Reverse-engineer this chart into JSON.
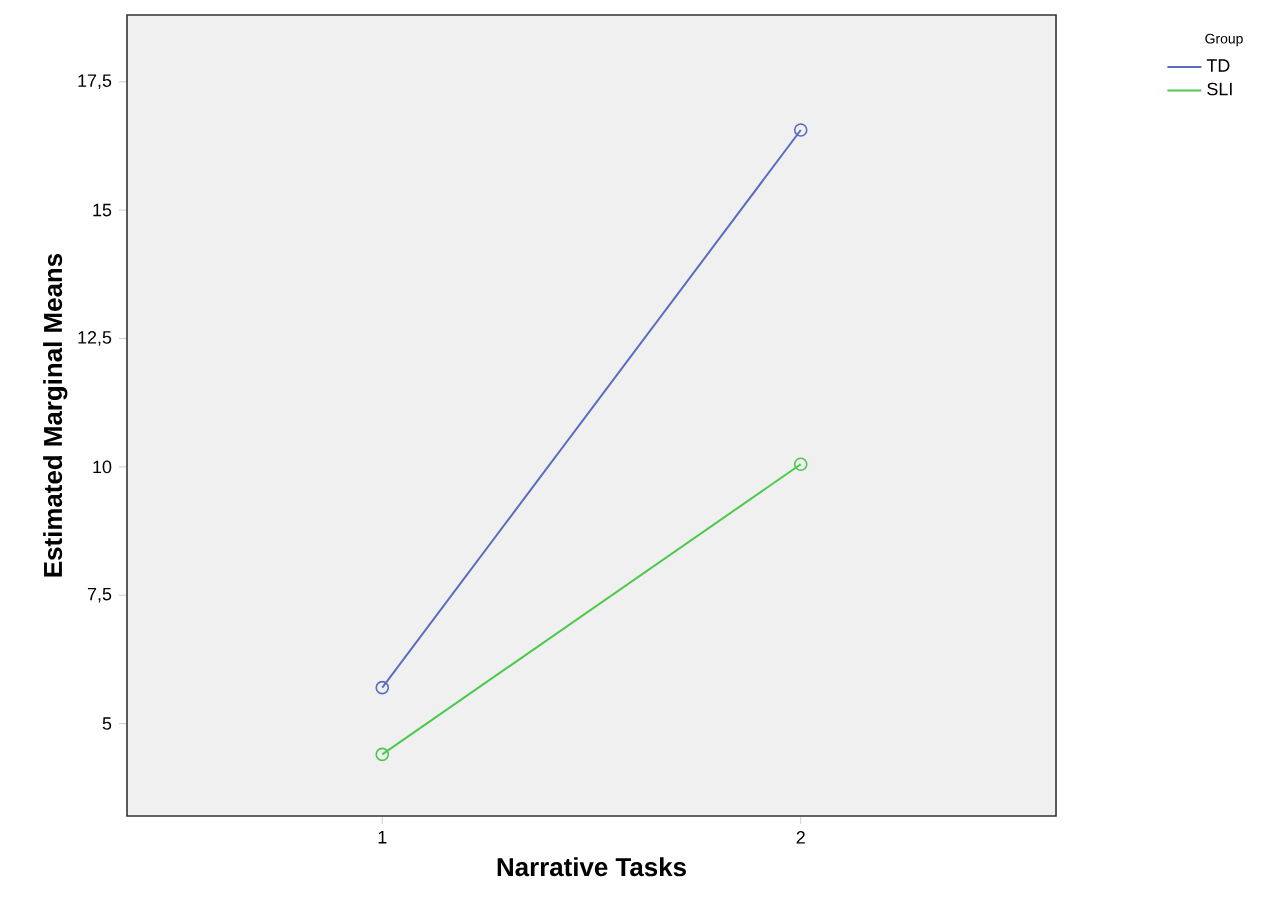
{
  "chart_data": {
    "type": "line",
    "xlabel": "Narrative Tasks",
    "ylabel": "Estimated Marginal Means",
    "legend_title": "Group",
    "categories": [
      "1",
      "2"
    ],
    "series": [
      {
        "name": "TD",
        "color": "#5b6bbf",
        "values": [
          5.7,
          16.56
        ]
      },
      {
        "name": "SLI",
        "color": "#4cc94c",
        "values": [
          4.4,
          10.05
        ]
      }
    ],
    "ylim": [
      3.2,
      18.8
    ],
    "yticks": [
      5,
      {
        "value": 7.5,
        "label": "7,5"
      },
      10,
      {
        "value": 12.5,
        "label": "12,5"
      },
      15,
      {
        "value": 17.5,
        "label": "17,5"
      }
    ],
    "marker": "circle",
    "line_style": "solid",
    "legend": "top right",
    "grid": false
  }
}
